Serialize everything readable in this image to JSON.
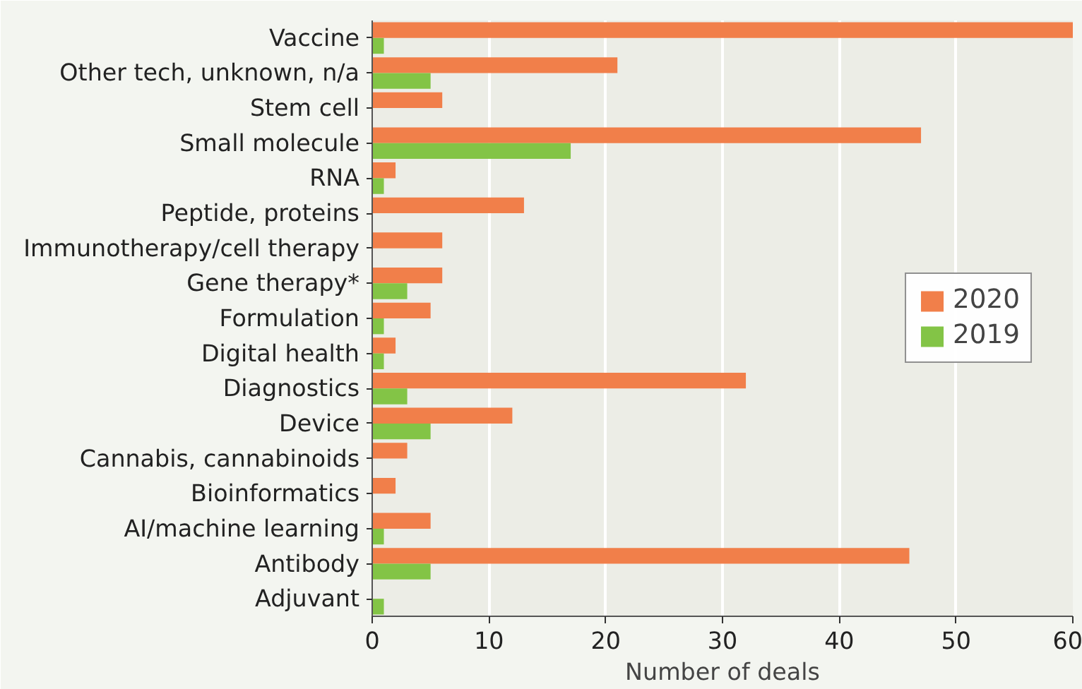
{
  "chart_data": {
    "type": "bar",
    "orientation": "horizontal",
    "xlabel": "Number of deals",
    "categories": [
      "Vaccine",
      "Other tech, unknown, n/a",
      "Stem cell",
      "Small molecule",
      "RNA",
      "Peptide, proteins",
      "Immunotherapy/cell therapy",
      "Gene therapy*",
      "Formulation",
      "Digital health",
      "Diagnostics",
      "Device",
      "Cannabis, cannabinoids",
      "Bioinformatics",
      "AI/machine learning",
      "Antibody",
      "Adjuvant"
    ],
    "series": [
      {
        "name": "2020",
        "color": "#f17f4a",
        "values": [
          60,
          21,
          6,
          47,
          2,
          13,
          6,
          6,
          5,
          2,
          32,
          12,
          3,
          2,
          5,
          46,
          null
        ]
      },
      {
        "name": "2019",
        "color": "#83c446",
        "values": [
          1,
          5,
          null,
          17,
          1,
          null,
          null,
          3,
          1,
          1,
          3,
          5,
          null,
          null,
          1,
          5,
          1
        ]
      }
    ],
    "xlim": [
      0,
      60
    ],
    "xticks": [
      0,
      10,
      20,
      30,
      40,
      50,
      60
    ],
    "grid": "x",
    "legend": "right"
  }
}
